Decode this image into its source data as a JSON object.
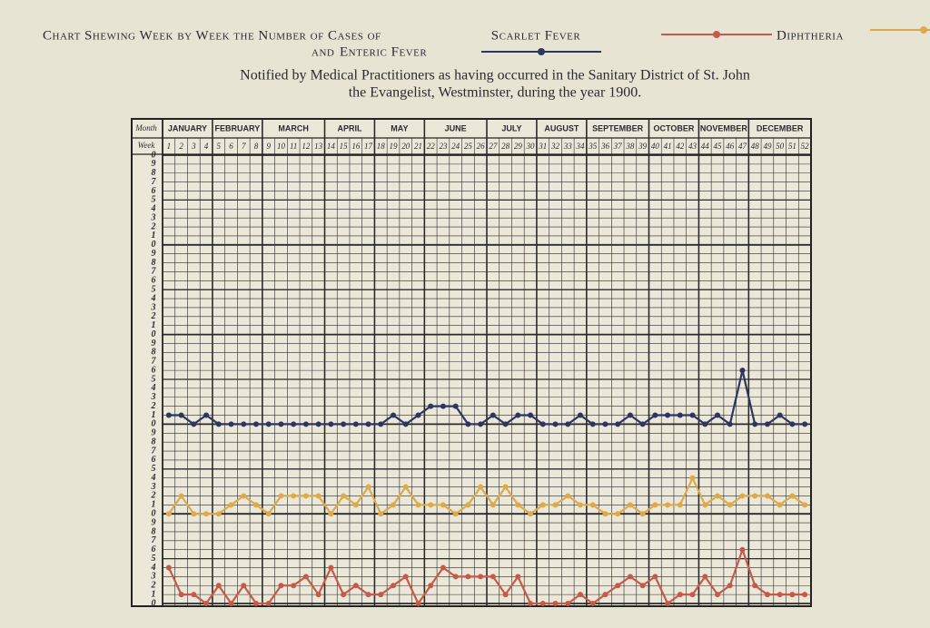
{
  "chart_data": {
    "type": "line",
    "title": "Chart Shewing Week by Week the Number of Cases of",
    "legend_conjunction": "and",
    "subtitle_lines": [
      "Notified by Medical Practitioners as having occurred in the Sanitary District of St. John",
      "the Evangelist, Westminster, during the year 1900."
    ],
    "month_header": "Month",
    "week_header": "Week",
    "months": [
      "JANUARY",
      "FEBRUARY",
      "MARCH",
      "APRIL",
      "MAY",
      "JUNE",
      "JULY",
      "AUGUST",
      "SEPTEMBER",
      "OCTOBER",
      "NOVEMBER",
      "DECEMBER"
    ],
    "x": [
      1,
      2,
      3,
      4,
      5,
      6,
      7,
      8,
      9,
      10,
      11,
      12,
      13,
      14,
      15,
      16,
      17,
      18,
      19,
      20,
      21,
      22,
      23,
      24,
      25,
      26,
      27,
      28,
      29,
      30,
      31,
      32,
      33,
      34,
      35,
      36,
      37,
      38,
      39,
      40,
      41,
      42,
      43,
      44,
      45,
      46,
      47,
      48,
      49,
      50,
      51,
      52
    ],
    "ylim": [
      0,
      50
    ],
    "yticks": [
      0,
      1,
      2,
      3,
      4,
      5,
      6,
      7,
      8,
      9,
      {
        "value": 10,
        "label": "0"
      },
      {
        "value": 11,
        "label": "1"
      },
      {
        "value": 12,
        "label": "2"
      },
      {
        "value": 13,
        "label": "3"
      },
      {
        "value": 14,
        "label": "4"
      },
      {
        "value": 15,
        "label": "5"
      },
      {
        "value": 16,
        "label": "6"
      },
      {
        "value": 17,
        "label": "7"
      },
      {
        "value": 18,
        "label": "8"
      },
      {
        "value": 19,
        "label": "9"
      },
      {
        "value": 20,
        "label": "0"
      },
      {
        "value": 21,
        "label": "1"
      },
      {
        "value": 22,
        "label": "2"
      },
      {
        "value": 23,
        "label": "3"
      },
      {
        "value": 24,
        "label": "4"
      },
      {
        "value": 25,
        "label": "5"
      },
      {
        "value": 26,
        "label": "6"
      },
      {
        "value": 27,
        "label": "7"
      },
      {
        "value": 28,
        "label": "8"
      },
      {
        "value": 29,
        "label": "9"
      },
      {
        "value": 30,
        "label": "0"
      },
      {
        "value": 31,
        "label": "1"
      },
      {
        "value": 32,
        "label": "2"
      },
      {
        "value": 33,
        "label": "3"
      },
      {
        "value": 34,
        "label": "4"
      },
      {
        "value": 35,
        "label": "5"
      },
      {
        "value": 36,
        "label": "6"
      },
      {
        "value": 37,
        "label": "7"
      },
      {
        "value": 38,
        "label": "8"
      },
      {
        "value": 39,
        "label": "9"
      },
      {
        "value": 40,
        "label": "0"
      },
      {
        "value": 41,
        "label": "1"
      },
      {
        "value": 42,
        "label": "2"
      },
      {
        "value": 43,
        "label": "3"
      },
      {
        "value": 44,
        "label": "4"
      },
      {
        "value": 45,
        "label": "5"
      },
      {
        "value": 46,
        "label": "6"
      },
      {
        "value": 47,
        "label": "7"
      },
      {
        "value": 48,
        "label": "8"
      },
      {
        "value": 49,
        "label": "9"
      },
      {
        "value": 50,
        "label": "0"
      }
    ],
    "grid": true,
    "series": [
      {
        "name": "Scarlet Fever",
        "color": "#c65a4a",
        "values": [
          4,
          1,
          1,
          0,
          2,
          0,
          2,
          0,
          0,
          2,
          2,
          3,
          1,
          4,
          1,
          2,
          1,
          1,
          2,
          3,
          0,
          2,
          4,
          3,
          3,
          3,
          3,
          1,
          3,
          0,
          0,
          0,
          0,
          1,
          0,
          1,
          2,
          3,
          2,
          3,
          0,
          1,
          1,
          3,
          1,
          2,
          6,
          2,
          1,
          1,
          1,
          1
        ]
      },
      {
        "name": "Diphtheria",
        "color": "#dcaa4a",
        "values": [
          10,
          12,
          10,
          10,
          10,
          11,
          12,
          11,
          10,
          12,
          12,
          12,
          12,
          10,
          12,
          11,
          13,
          10,
          11,
          13,
          11,
          11,
          11,
          10,
          11,
          13,
          11,
          13,
          11,
          10,
          11,
          11,
          12,
          11,
          11,
          10,
          10,
          11,
          10,
          11,
          11,
          11,
          14,
          11,
          12,
          11,
          12,
          12,
          12,
          11,
          12,
          11
        ]
      },
      {
        "name": "Enteric Fever",
        "color": "#2e3560",
        "values": [
          21,
          21,
          20,
          21,
          20,
          20,
          20,
          20,
          20,
          20,
          20,
          20,
          20,
          20,
          20,
          20,
          20,
          20,
          21,
          20,
          21,
          22,
          22,
          22,
          20,
          20,
          21,
          20,
          21,
          21,
          20,
          20,
          20,
          21,
          20,
          20,
          20,
          21,
          20,
          21,
          21,
          21,
          21,
          20,
          21,
          20,
          26,
          20,
          20,
          21,
          20,
          20
        ]
      }
    ]
  }
}
